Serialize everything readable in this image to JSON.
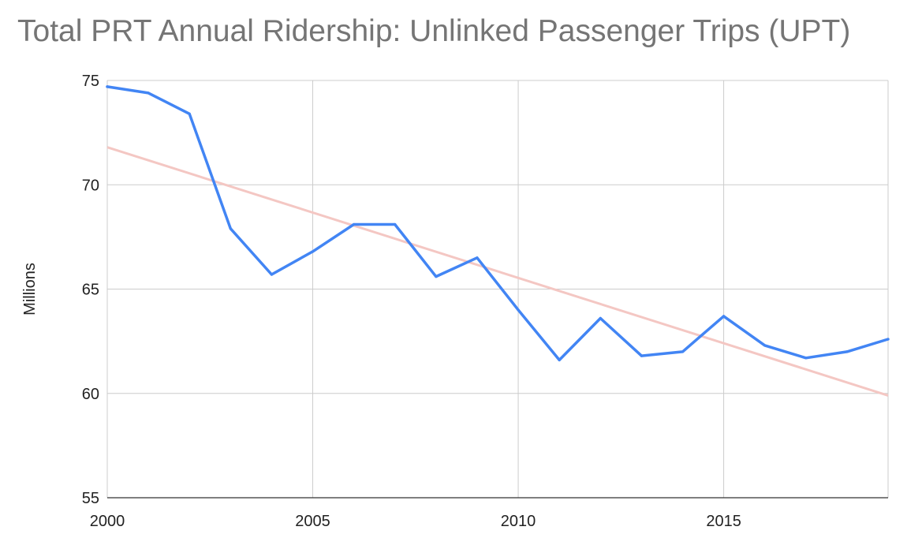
{
  "chart_data": {
    "type": "line",
    "title": "Total PRT Annual Ridership: Unlinked Passenger Trips (UPT)",
    "xlabel": "",
    "ylabel": "Millions",
    "xlim": [
      2000,
      2019
    ],
    "ylim": [
      55,
      75
    ],
    "x_ticks": [
      "2000",
      "2005",
      "2010",
      "2015"
    ],
    "y_ticks": [
      "55",
      "60",
      "65",
      "70",
      "75"
    ],
    "grid": true,
    "x": [
      2000,
      2001,
      2002,
      2003,
      2004,
      2005,
      2006,
      2007,
      2008,
      2009,
      2010,
      2011,
      2012,
      2013,
      2014,
      2015,
      2016,
      2017,
      2018,
      2019
    ],
    "series": [
      {
        "values": [
          74.7,
          74.4,
          73.4,
          67.9,
          65.7,
          66.8,
          68.1,
          68.1,
          65.6,
          66.5,
          64.0,
          61.6,
          63.6,
          61.8,
          62.0,
          63.7,
          62.3,
          61.7,
          62.0,
          62.6
        ],
        "color": "#4285f4"
      }
    ],
    "trendline": {
      "type": "linear",
      "start": [
        2000,
        71.8
      ],
      "end": [
        2019,
        59.9
      ],
      "color": "#f4c7c3"
    }
  }
}
